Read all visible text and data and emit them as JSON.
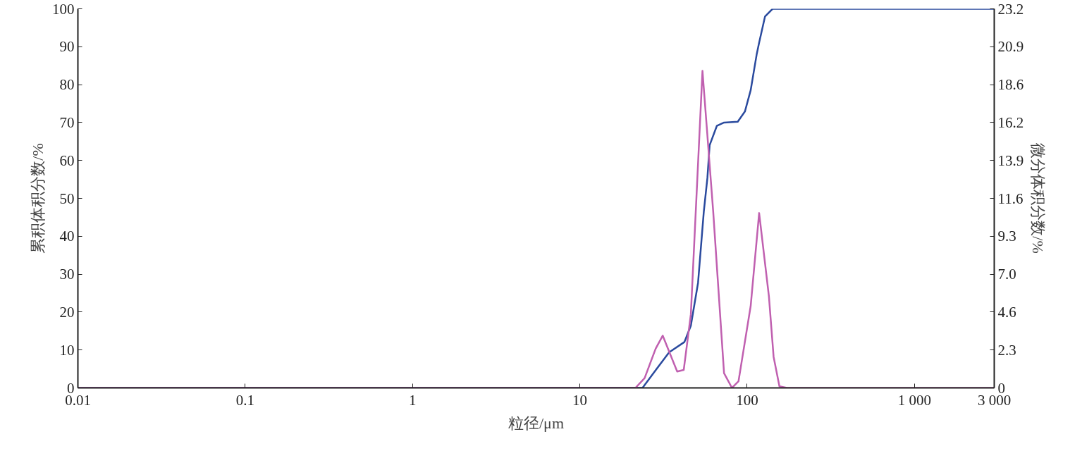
{
  "chart_data": {
    "type": "line",
    "xlabel": "粒径/μm",
    "ylabel": "累积体积分数/%",
    "y2label": "微分体积分数/%",
    "log": "x",
    "grid": false,
    "marker": "none",
    "line_style": "solid",
    "xlim": [
      0.01,
      3000
    ],
    "xticks": [
      0.01,
      0.1,
      1,
      10,
      100,
      {
        "value": 1000,
        "label": "1 000"
      },
      {
        "value": 3000,
        "label": "3 000"
      }
    ],
    "ylim": [
      0,
      100
    ],
    "yticks": [
      0,
      10,
      20,
      30,
      40,
      50,
      60,
      70,
      80,
      90,
      100
    ],
    "y2lim": [
      0,
      23.2
    ],
    "y2ticks": [
      0,
      {
        "value": 2.32,
        "label": "2.3"
      },
      {
        "value": 4.64,
        "label": "4.6"
      },
      {
        "value": 6.96,
        "label": "7.0"
      },
      {
        "value": 9.28,
        "label": "9.3"
      },
      {
        "value": 11.6,
        "label": "11.6"
      },
      {
        "value": 13.92,
        "label": "13.9"
      },
      {
        "value": 16.24,
        "label": "16.2"
      },
      {
        "value": 18.56,
        "label": "18.6"
      },
      {
        "value": 20.88,
        "label": "20.9"
      },
      23.2
    ],
    "series": [
      {
        "color": "#2a4a9e",
        "x": [
          0.01,
          23.7,
          28.9,
          34.2,
          42.2,
          46.1,
          50.9,
          55.1,
          57.9,
          59.7,
          65.9,
          72.8,
          87.9,
          97,
          105,
          114,
          118,
          128,
          142,
          3000
        ],
        "values": [
          0,
          0,
          5.1,
          9.4,
          12.1,
          16.4,
          27.7,
          46.5,
          55.4,
          64,
          69.1,
          70,
          70.2,
          72.9,
          78.5,
          87.9,
          91.1,
          98,
          100,
          100
        ]
      },
      {
        "color": "#c060b0",
        "axis": "y2",
        "x": [
          0.01,
          21.5,
          24.4,
          28.4,
          31.3,
          38.2,
          41.8,
          46.1,
          54.1,
          62.7,
          72.8,
          81.2,
          88.8,
          105,
          118,
          135,
          144,
          156,
          173,
          3000
        ],
        "values": [
          0,
          0,
          0.6,
          2.4,
          3.2,
          1.0,
          1.1,
          4.5,
          19.4,
          10.8,
          0.9,
          0,
          0.4,
          5.0,
          10.7,
          5.6,
          1.9,
          0.1,
          0,
          0
        ]
      }
    ]
  }
}
